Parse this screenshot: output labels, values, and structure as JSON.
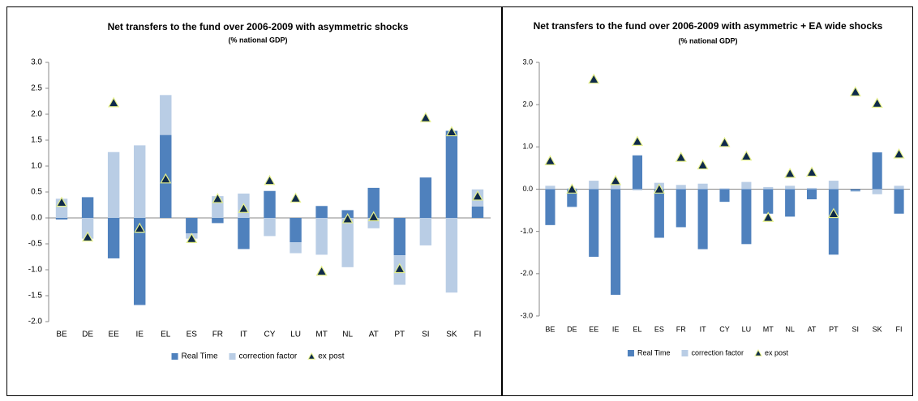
{
  "chart_data": [
    {
      "type": "bar",
      "title": "Net transfers to the fund over 2006-2009 with asymmetric shocks",
      "subtitle": "(% national GDP)",
      "categories": [
        "BE",
        "DE",
        "EE",
        "IE",
        "EL",
        "ES",
        "FR",
        "IT",
        "CY",
        "LU",
        "MT",
        "NL",
        "AT",
        "PT",
        "SI",
        "SK",
        "FI"
      ],
      "series": [
        {
          "name": "Real Time",
          "color": "#4f81bd",
          "values": [
            -0.03,
            0.4,
            -0.78,
            -1.68,
            1.6,
            -0.3,
            -0.1,
            -0.6,
            0.52,
            -0.47,
            0.23,
            0.15,
            0.58,
            -0.72,
            0.78,
            1.68,
            0.22
          ]
        },
        {
          "name": "correction factor",
          "color": "#b9cde5",
          "values": [
            0.37,
            -0.4,
            1.27,
            1.4,
            0.77,
            -0.1,
            0.42,
            0.47,
            -0.35,
            -0.21,
            -0.71,
            -0.95,
            -0.2,
            -0.57,
            -0.53,
            -1.44,
            0.33
          ]
        },
        {
          "name": "ex post",
          "color": "#0f2a4a",
          "marker": "triangle",
          "values": [
            0.3,
            -0.37,
            2.22,
            -0.2,
            0.75,
            -0.4,
            0.37,
            0.18,
            0.72,
            0.38,
            -1.03,
            -0.02,
            0.02,
            -0.98,
            1.93,
            1.66,
            0.42
          ]
        }
      ],
      "ylim": [
        -2,
        3
      ],
      "yticks": [
        {
          "value": 3,
          "label": "3.0"
        },
        2.5,
        {
          "value": 2,
          "label": "2.0"
        },
        1.5,
        {
          "value": 1,
          "label": "1.0"
        },
        0.5,
        {
          "value": 0,
          "label": "0.0"
        },
        -0.5,
        {
          "value": -1,
          "label": "-1.0"
        },
        -1.5,
        {
          "value": -2,
          "label": "-2.0"
        }
      ],
      "grid": false,
      "legend": "bottom"
    },
    {
      "type": "bar",
      "title": "Net transfers to the fund over 2006-2009 with asymmetric + EA wide shocks",
      "subtitle": "(% national GDP)",
      "categories": [
        "BE",
        "DE",
        "EE",
        "IE",
        "EL",
        "ES",
        "FR",
        "IT",
        "CY",
        "LU",
        "MT",
        "NL",
        "AT",
        "PT",
        "SI",
        "SK",
        "FI"
      ],
      "series": [
        {
          "name": "Real Time",
          "color": "#4f81bd",
          "values": [
            -0.85,
            -0.42,
            -1.6,
            -2.5,
            0.8,
            -1.15,
            -0.9,
            -1.42,
            -0.3,
            -1.3,
            -0.58,
            -0.65,
            -0.24,
            -1.55,
            -0.04,
            0.87,
            -0.58
          ]
        },
        {
          "name": "correction factor",
          "color": "#b9cde5",
          "values": [
            0.08,
            0.02,
            0.2,
            0.15,
            -0.03,
            0.15,
            0.1,
            0.13,
            0.02,
            0.17,
            0.05,
            0.08,
            0.03,
            0.2,
            -0.02,
            -0.12,
            0.08
          ]
        },
        {
          "name": "ex post",
          "color": "#0f2a4a",
          "marker": "triangle",
          "values": [
            0.67,
            0.0,
            2.6,
            0.2,
            1.13,
            0.0,
            0.75,
            0.57,
            1.1,
            0.78,
            -0.67,
            0.37,
            0.4,
            -0.58,
            2.3,
            2.03,
            0.83
          ]
        }
      ],
      "ylim": [
        -3,
        3
      ],
      "yticks": [
        {
          "value": 3,
          "label": "3.0"
        },
        {
          "value": 2,
          "label": "2.0"
        },
        {
          "value": 1,
          "label": "1.0"
        },
        {
          "value": 0,
          "label": "0.0"
        },
        {
          "value": -1,
          "label": "-1.0"
        },
        {
          "value": -2,
          "label": "-2.0"
        },
        {
          "value": -3,
          "label": "-3.0"
        }
      ],
      "grid": false,
      "legend": "bottom"
    }
  ]
}
